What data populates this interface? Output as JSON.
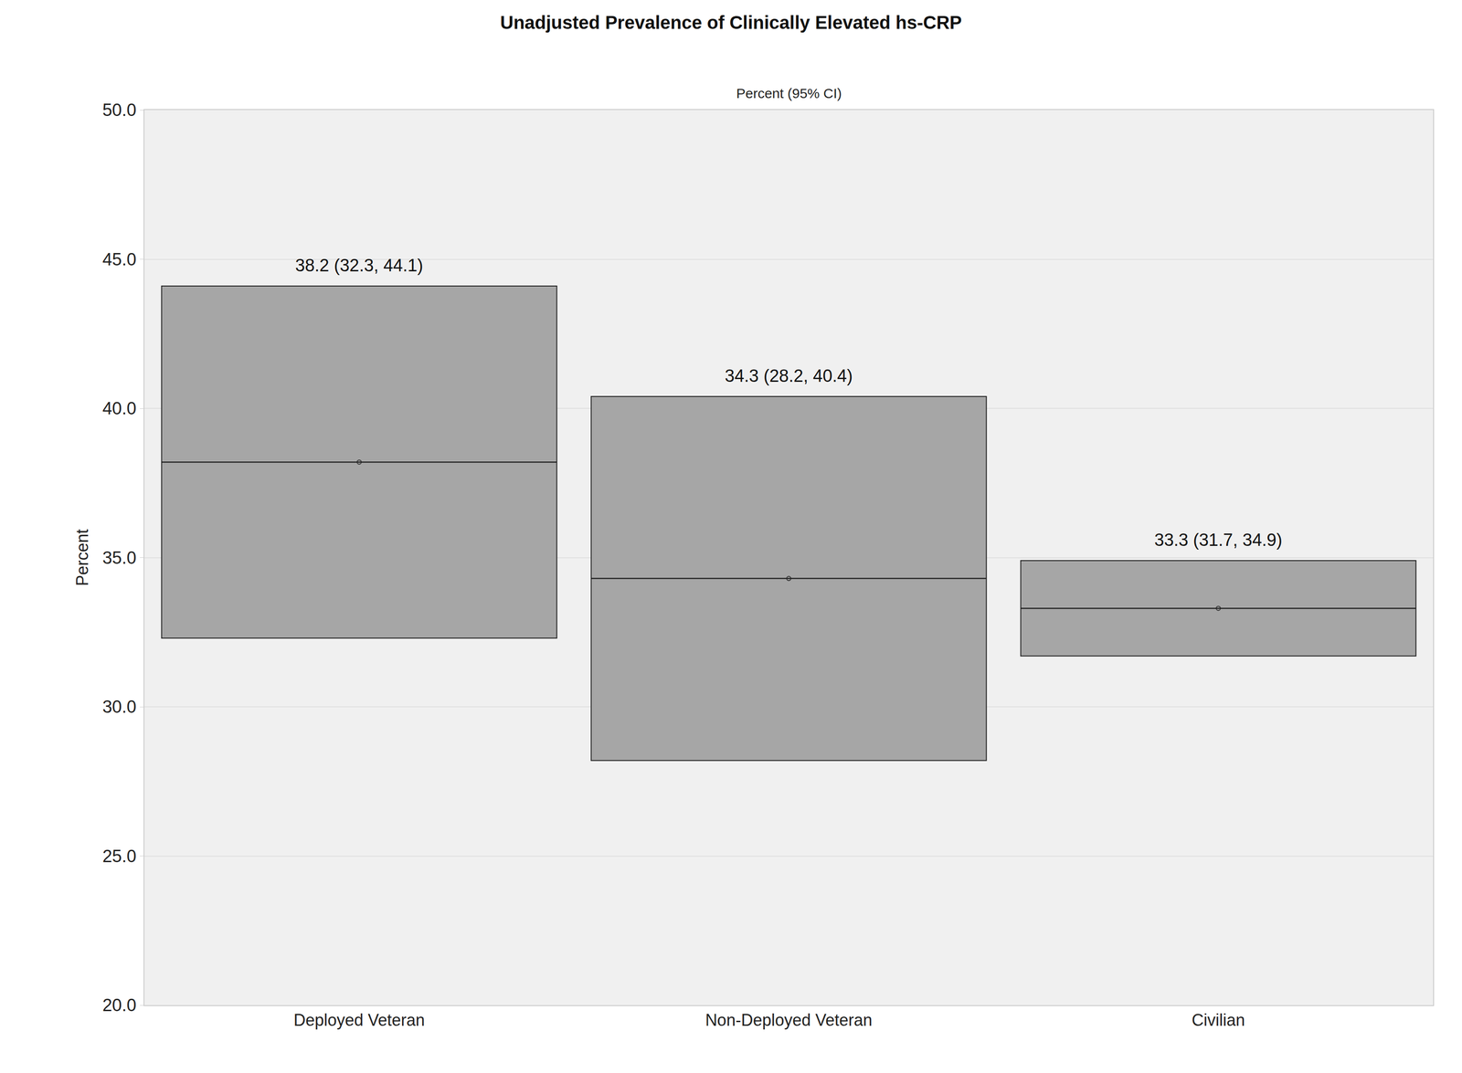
{
  "chart_data": {
    "type": "bar",
    "title": "Unadjusted Prevalence of Clinically Elevated hs-CRP",
    "subtitle": "Percent (95% CI)",
    "y_label": "Percent",
    "categories": [
      "Deployed Veteran",
      "Non-Deployed Veteran",
      "Civilian"
    ],
    "values": [
      38.2,
      34.3,
      33.3
    ],
    "ci_lower": [
      32.3,
      28.2,
      31.7
    ],
    "ci_upper": [
      44.1,
      40.4,
      34.9
    ],
    "value_labels": [
      "38.2 (32.3, 44.1)",
      "34.3 (28.2, 40.4)",
      "33.3 (31.7, 34.9)"
    ],
    "data_labels": true,
    "color": "#a6a6a6",
    "marker": "circle",
    "ylim": [
      20,
      50
    ],
    "yticks": [
      {
        "value": 20,
        "label": "20.0"
      },
      {
        "value": 25,
        "label": "25.0"
      },
      {
        "value": 30,
        "label": "30.0"
      },
      {
        "value": 35,
        "label": "35.0"
      },
      {
        "value": 40,
        "label": "40.0"
      },
      {
        "value": 45,
        "label": "45.0"
      },
      {
        "value": 50,
        "label": "50.0"
      }
    ],
    "grid": true
  }
}
